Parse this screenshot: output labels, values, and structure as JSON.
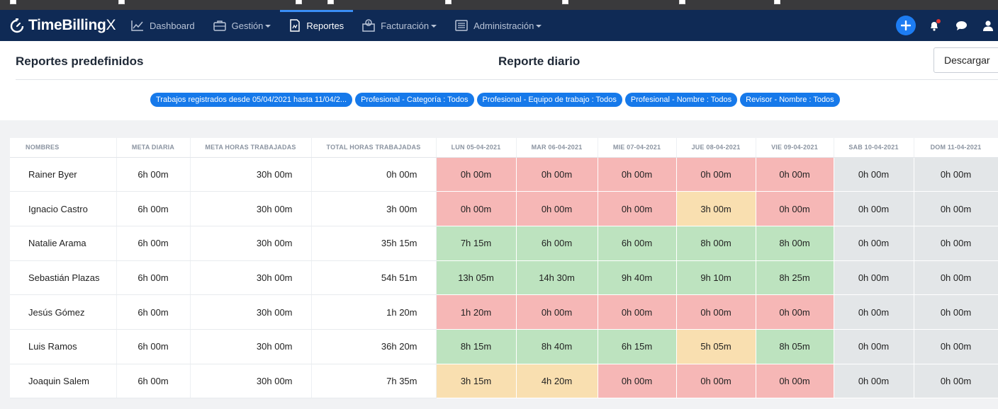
{
  "app": {
    "brand": "TimeBilling",
    "brand_suffix": "X"
  },
  "nav": {
    "items": [
      {
        "label": "Dashboard",
        "icon": "chart-icon",
        "dropdown": false,
        "active": false
      },
      {
        "label": "Gestión",
        "icon": "briefcase-icon",
        "dropdown": true,
        "active": false
      },
      {
        "label": "Reportes",
        "icon": "report-icon",
        "dropdown": false,
        "active": true
      },
      {
        "label": "Facturación",
        "icon": "invoice-icon",
        "dropdown": true,
        "active": false
      },
      {
        "label": "Administración",
        "icon": "list-icon",
        "dropdown": true,
        "active": false
      }
    ]
  },
  "header": {
    "left_title": "Reportes predefinidos",
    "center_title": "Reporte diario",
    "download_label": "Descargar"
  },
  "filters": [
    "Trabajos registrados desde 05/04/2021 hasta 11/04/2...",
    "Profesional - Categoría : Todos",
    "Profesional - Equipo de trabajo : Todos",
    "Profesional - Nombre : Todos",
    "Revisor - Nombre : Todos"
  ],
  "colors": {
    "red": "#f6b7b6",
    "green": "#bde3bf",
    "yellow": "#f9dfb0",
    "gray": "#e3e6e8"
  },
  "table": {
    "columns": [
      "NOMBRES",
      "META DIARIA",
      "META HORAS TRABAJADAS",
      "TOTAL HORAS TRABAJADAS",
      "LUN 05-04-2021",
      "MAR 06-04-2021",
      "MIE 07-04-2021",
      "JUE 08-04-2021",
      "VIE 09-04-2021",
      "SAB 10-04-2021",
      "DOM 11-04-2021"
    ],
    "rows": [
      {
        "name": "Rainer Byer",
        "meta_diaria": "6h 00m",
        "meta_horas": "30h 00m",
        "total": "0h 00m",
        "days": [
          {
            "v": "0h 00m",
            "s": "red"
          },
          {
            "v": "0h 00m",
            "s": "red"
          },
          {
            "v": "0h 00m",
            "s": "red"
          },
          {
            "v": "0h 00m",
            "s": "red"
          },
          {
            "v": "0h 00m",
            "s": "red"
          },
          {
            "v": "0h 00m",
            "s": "gray"
          },
          {
            "v": "0h 00m",
            "s": "gray"
          }
        ]
      },
      {
        "name": "Ignacio Castro",
        "meta_diaria": "6h 00m",
        "meta_horas": "30h 00m",
        "total": "3h 00m",
        "days": [
          {
            "v": "0h 00m",
            "s": "red"
          },
          {
            "v": "0h 00m",
            "s": "red"
          },
          {
            "v": "0h 00m",
            "s": "red"
          },
          {
            "v": "3h 00m",
            "s": "yellow"
          },
          {
            "v": "0h 00m",
            "s": "red"
          },
          {
            "v": "0h 00m",
            "s": "gray"
          },
          {
            "v": "0h 00m",
            "s": "gray"
          }
        ]
      },
      {
        "name": "Natalie Arama",
        "meta_diaria": "6h 00m",
        "meta_horas": "30h 00m",
        "total": "35h 15m",
        "days": [
          {
            "v": "7h 15m",
            "s": "green"
          },
          {
            "v": "6h 00m",
            "s": "green"
          },
          {
            "v": "6h 00m",
            "s": "green"
          },
          {
            "v": "8h 00m",
            "s": "green"
          },
          {
            "v": "8h 00m",
            "s": "green"
          },
          {
            "v": "0h 00m",
            "s": "gray"
          },
          {
            "v": "0h 00m",
            "s": "gray"
          }
        ]
      },
      {
        "name": "Sebastián Plazas",
        "meta_diaria": "6h 00m",
        "meta_horas": "30h 00m",
        "total": "54h 51m",
        "days": [
          {
            "v": "13h 05m",
            "s": "green"
          },
          {
            "v": "14h 30m",
            "s": "green"
          },
          {
            "v": "9h 40m",
            "s": "green"
          },
          {
            "v": "9h 10m",
            "s": "green"
          },
          {
            "v": "8h 25m",
            "s": "green"
          },
          {
            "v": "0h 00m",
            "s": "gray"
          },
          {
            "v": "0h 00m",
            "s": "gray"
          }
        ]
      },
      {
        "name": "Jesús Gómez",
        "meta_diaria": "6h 00m",
        "meta_horas": "30h 00m",
        "total": "1h 20m",
        "days": [
          {
            "v": "1h 20m",
            "s": "red"
          },
          {
            "v": "0h 00m",
            "s": "red"
          },
          {
            "v": "0h 00m",
            "s": "red"
          },
          {
            "v": "0h 00m",
            "s": "red"
          },
          {
            "v": "0h 00m",
            "s": "red"
          },
          {
            "v": "0h 00m",
            "s": "gray"
          },
          {
            "v": "0h 00m",
            "s": "gray"
          }
        ]
      },
      {
        "name": "Luis Ramos",
        "meta_diaria": "6h 00m",
        "meta_horas": "30h 00m",
        "total": "36h 20m",
        "days": [
          {
            "v": "8h 15m",
            "s": "green"
          },
          {
            "v": "8h 40m",
            "s": "green"
          },
          {
            "v": "6h 15m",
            "s": "green"
          },
          {
            "v": "5h 05m",
            "s": "yellow"
          },
          {
            "v": "8h 05m",
            "s": "green"
          },
          {
            "v": "0h 00m",
            "s": "gray"
          },
          {
            "v": "0h 00m",
            "s": "gray"
          }
        ]
      },
      {
        "name": "Joaquin Salem",
        "meta_diaria": "6h 00m",
        "meta_horas": "30h 00m",
        "total": "7h 35m",
        "days": [
          {
            "v": "3h 15m",
            "s": "yellow"
          },
          {
            "v": "4h 20m",
            "s": "yellow"
          },
          {
            "v": "0h 00m",
            "s": "red"
          },
          {
            "v": "0h 00m",
            "s": "red"
          },
          {
            "v": "0h 00m",
            "s": "red"
          },
          {
            "v": "0h 00m",
            "s": "gray"
          },
          {
            "v": "0h 00m",
            "s": "gray"
          }
        ]
      }
    ]
  }
}
